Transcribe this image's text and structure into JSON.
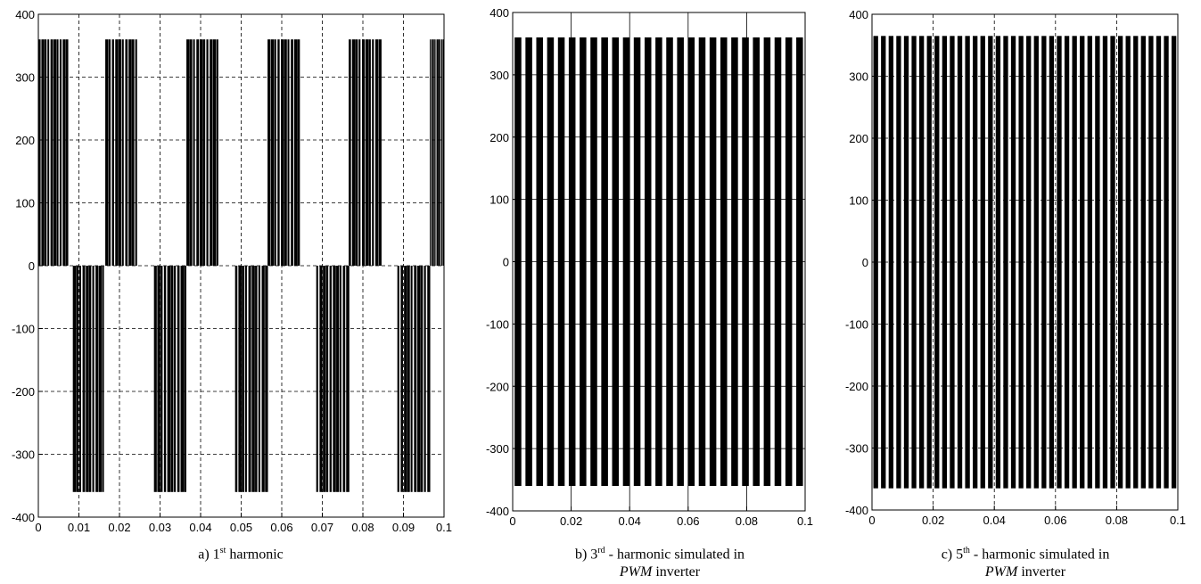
{
  "chart_data": [
    {
      "type": "line",
      "panel": "a",
      "caption": {
        "prefix": "a) 1",
        "sup": "st",
        "rest": " harmonic",
        "line2_italic": "",
        "line2_rest": ""
      },
      "xlim": [
        0,
        0.1
      ],
      "ylim": [
        -400,
        400
      ],
      "x_ticks": [
        "0",
        "0.01",
        "0.02",
        "0.03",
        "0.04",
        "0.05",
        "0.06",
        "0.07",
        "0.08",
        "0.09",
        "0.1"
      ],
      "y_ticks": [
        "400",
        "300",
        "200",
        "100",
        "0",
        "-100",
        "-200",
        "-300",
        "-400"
      ],
      "grid": "dashed",
      "pulse_amplitude": 360,
      "fundamental_frequency_hz": 50,
      "positive_blocks": [
        [
          0.0,
          0.0075
        ],
        [
          0.0165,
          0.0247
        ],
        [
          0.0365,
          0.0447
        ],
        [
          0.0565,
          0.0647
        ],
        [
          0.0765,
          0.0847
        ],
        [
          0.0965,
          0.1
        ]
      ],
      "negative_blocks": [
        [
          0.0085,
          0.0165
        ],
        [
          0.0285,
          0.0367
        ],
        [
          0.0485,
          0.0567
        ],
        [
          0.0685,
          0.0767
        ],
        [
          0.0885,
          0.0967
        ]
      ]
    },
    {
      "type": "line",
      "panel": "b",
      "caption": {
        "prefix": "b) 3",
        "sup": "rd",
        "rest": " - harmonic simulated in",
        "line2_italic": "PWM",
        "line2_rest": " inverter"
      },
      "xlim": [
        0,
        0.1
      ],
      "ylim": [
        -400,
        400
      ],
      "x_ticks": [
        "0",
        "0.02",
        "0.04",
        "0.06",
        "0.08",
        "0.1"
      ],
      "y_ticks": [
        "400",
        "300",
        "200",
        "100",
        "0",
        "-100",
        "-200",
        "-300",
        "-400"
      ],
      "grid": "solid",
      "pulse_amplitude": 360,
      "pulse_count": 27
    },
    {
      "type": "line",
      "panel": "c",
      "caption": {
        "prefix": "c) 5",
        "sup": "th",
        "rest": " - harmonic simulated in",
        "line2_italic": "PWM",
        "line2_rest": " inverter"
      },
      "xlim": [
        0,
        0.1
      ],
      "ylim": [
        -400,
        400
      ],
      "x_ticks": [
        "0",
        "0.02",
        "0.04",
        "0.06",
        "0.08",
        "0.1"
      ],
      "y_ticks": [
        "400",
        "300",
        "200",
        "100",
        "0",
        "-100",
        "-200",
        "-300",
        "-400"
      ],
      "grid": "dashed",
      "pulse_amplitude": 365,
      "pulse_count": 40
    }
  ]
}
